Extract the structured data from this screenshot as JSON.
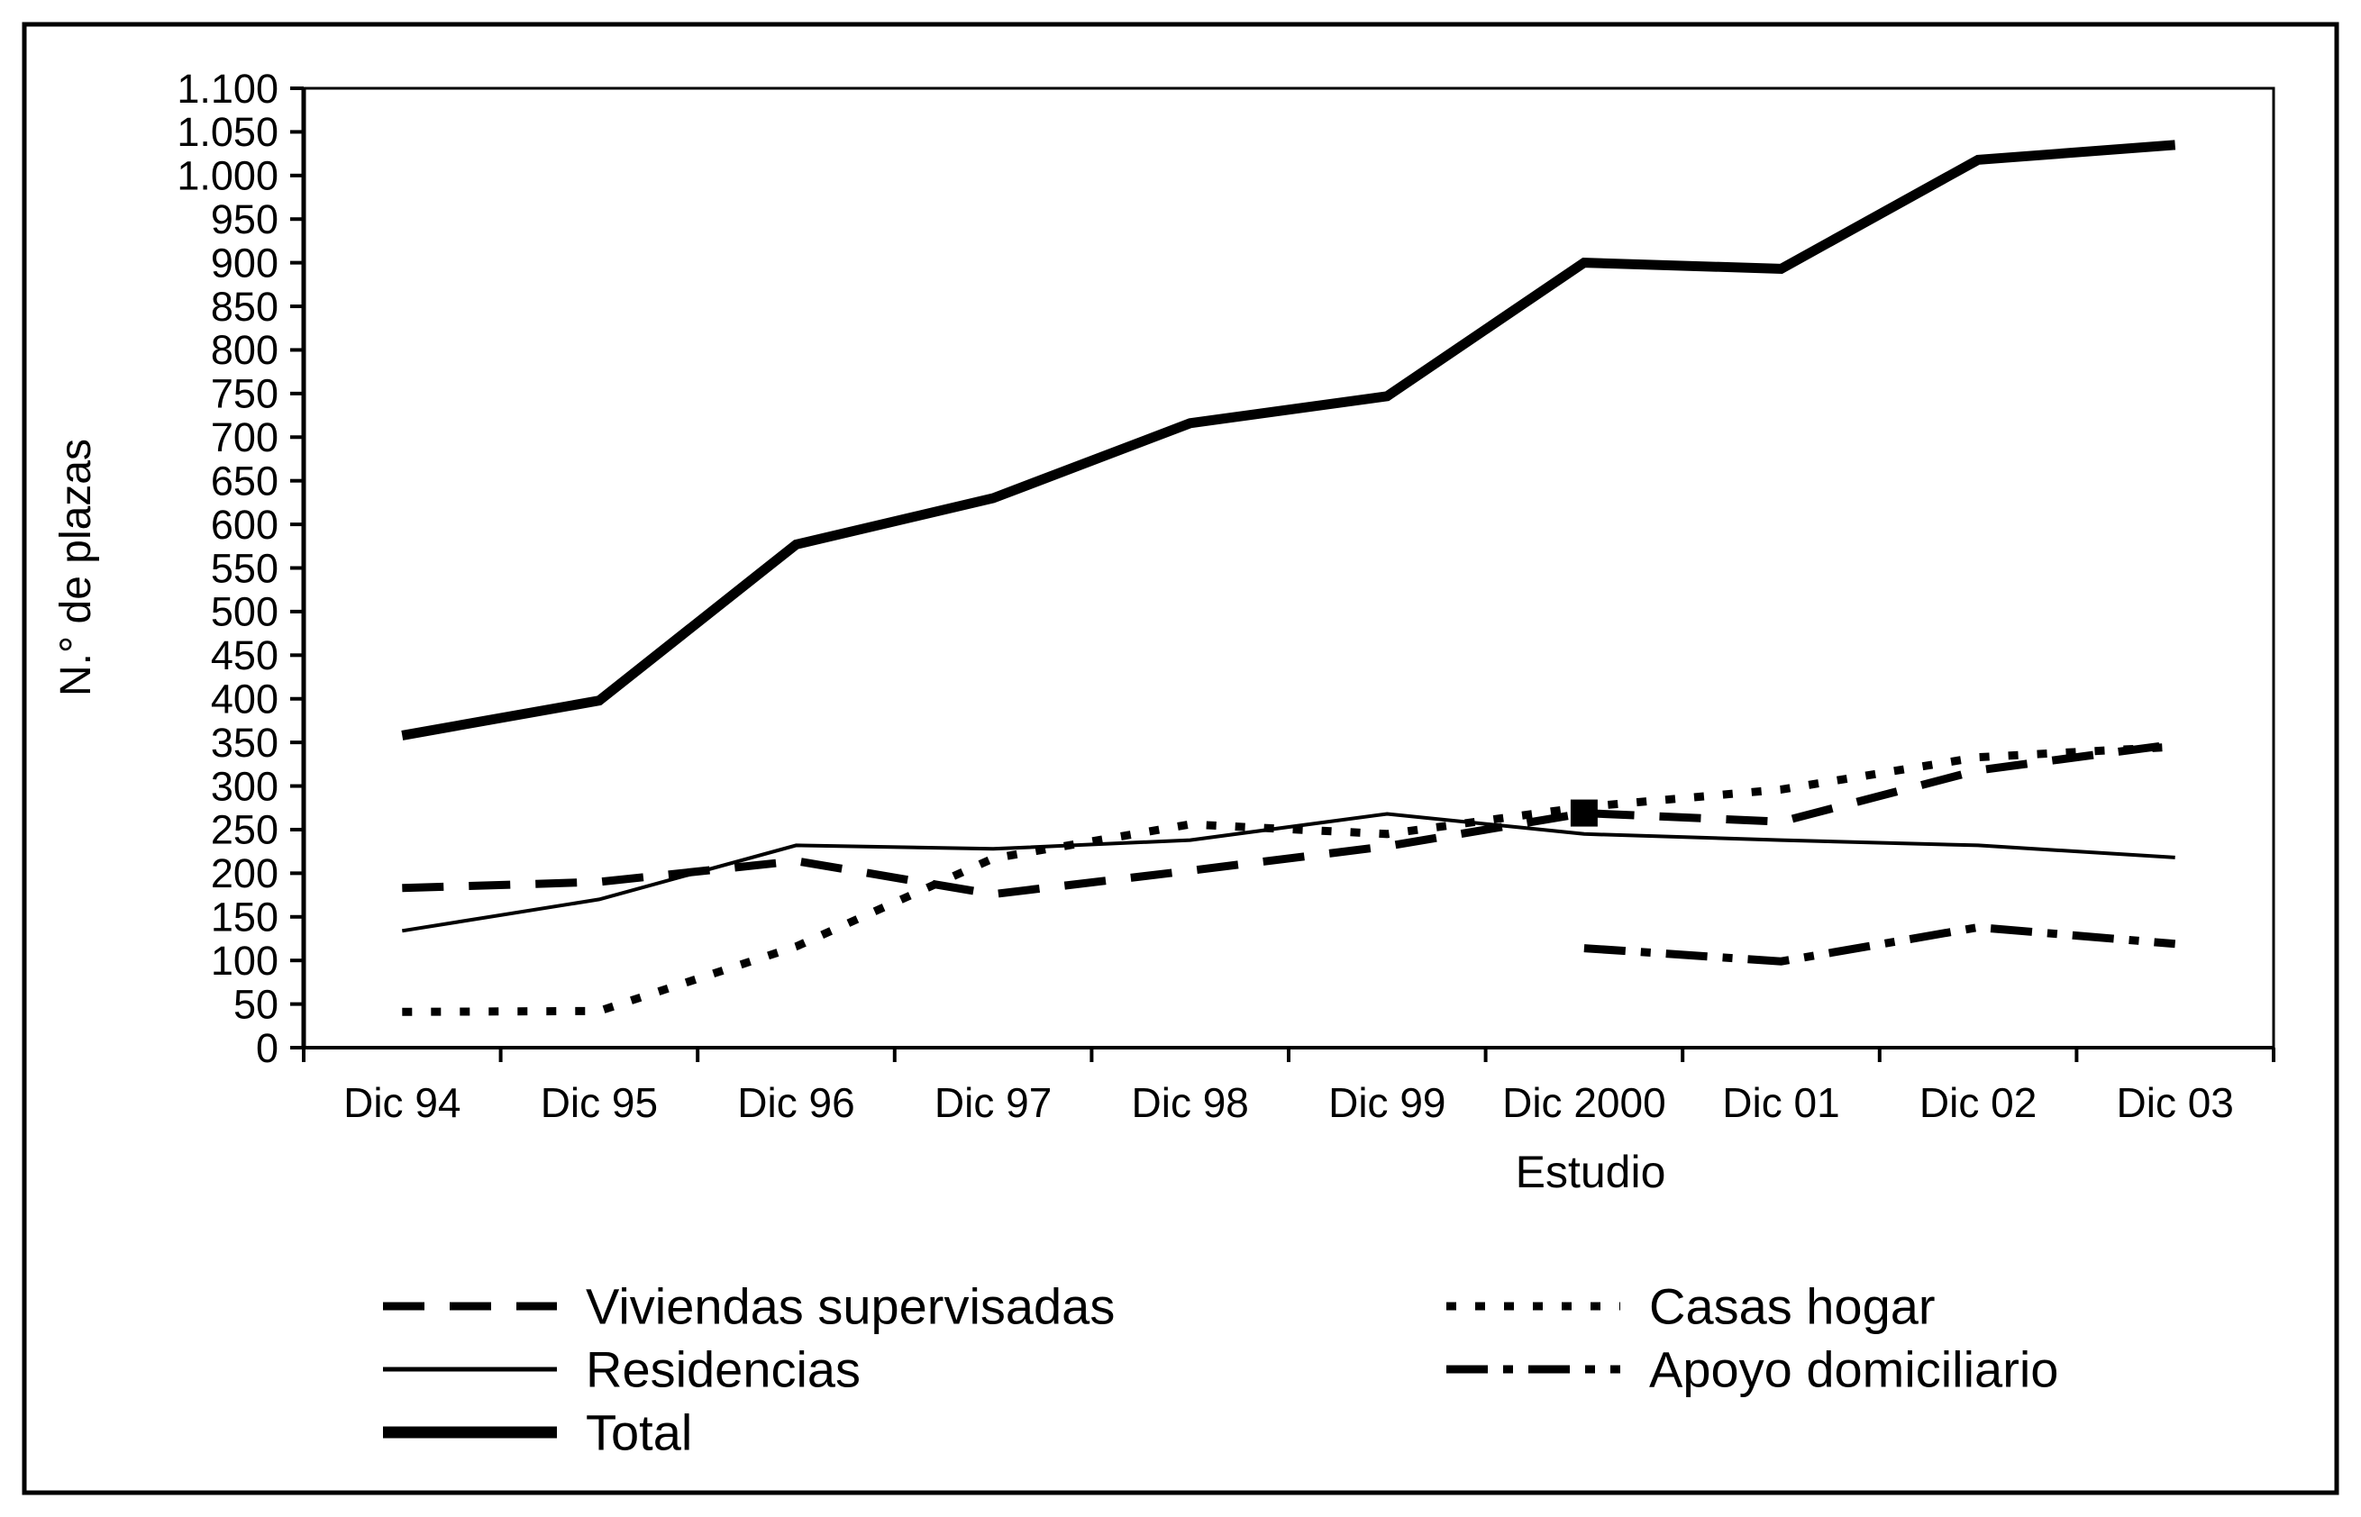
{
  "figure": {
    "background_color": "#ffffff",
    "ink_color": "#000000",
    "border": "black rectangular frame around whole figure"
  },
  "chart_data": {
    "type": "line",
    "title": "",
    "xlabel": "Estudio",
    "ylabel": "N.° de plazas",
    "categories": [
      "Dic 94",
      "Dic 95",
      "Dic 96",
      "Dic 97",
      "Dic 98",
      "Dic 99",
      "Dic 2000",
      "Dic 01",
      "Dic 02",
      "Dic 03"
    ],
    "ylim": [
      0,
      1100
    ],
    "y_tick_step": 50,
    "y_tick_labels": [
      "0",
      "50",
      "100",
      "150",
      "200",
      "250",
      "300",
      "350",
      "400",
      "450",
      "500",
      "550",
      "600",
      "650",
      "700",
      "750",
      "800",
      "850",
      "900",
      "950",
      "1.000",
      "1.050",
      "1.100"
    ],
    "grid": "off",
    "legend_position": "bottom-two-columns",
    "series": [
      {
        "name": "Viviendas supervisadas",
        "line_style": "dashed",
        "color": "#000000",
        "values": [
          183,
          190,
          214,
          176,
          203,
          231,
          269,
          259,
          318,
          348
        ],
        "marker": {
          "shape": "filled-square",
          "category": "Dic 2000",
          "value": 269
        }
      },
      {
        "name": "Casas hogar",
        "line_style": "dotted",
        "color": "#000000",
        "values": [
          41,
          42,
          116,
          217,
          256,
          245,
          276,
          296,
          333,
          345
        ]
      },
      {
        "name": "Residencias",
        "line_style": "solid-thin",
        "color": "#000000",
        "values": [
          134,
          170,
          232,
          228,
          238,
          268,
          245,
          238,
          232,
          218
        ]
      },
      {
        "name": "Apoyo domiciliario",
        "line_style": "dash-dot",
        "color": "#000000",
        "values": [
          null,
          null,
          null,
          null,
          null,
          null,
          114,
          99,
          138,
          119
        ]
      },
      {
        "name": "Total",
        "line_style": "solid-thick",
        "color": "#000000",
        "values": [
          358,
          398,
          577,
          630,
          716,
          747,
          900,
          893,
          1018,
          1035
        ]
      }
    ],
    "legend_columns": [
      [
        "Viviendas supervisadas",
        "Residencias",
        "Total"
      ],
      [
        "Casas hogar",
        "Apoyo domiciliario"
      ]
    ]
  }
}
